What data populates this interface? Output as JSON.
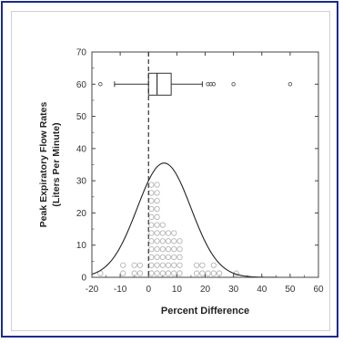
{
  "chart_data": {
    "type": "histogram-boxplot",
    "title": "",
    "xlabel": "Percent Difference",
    "ylabel_line1": "Peak Expiratory Flow Rates",
    "ylabel_line2": "(Liters Per Minute)",
    "xlim": [
      -20,
      60
    ],
    "ylim": [
      0,
      70
    ],
    "x_ticks": [
      -20,
      -10,
      0,
      10,
      20,
      30,
      40,
      50,
      60
    ],
    "y_ticks": [
      0,
      10,
      20,
      30,
      40,
      50,
      60,
      70
    ],
    "reference_line_x": 0,
    "histogram": {
      "bin_width": 2,
      "bins": [
        {
          "x": -18,
          "count": 1
        },
        {
          "x": -10,
          "count": 2
        },
        {
          "x": -6,
          "count": 2
        },
        {
          "x": -4,
          "count": 2
        },
        {
          "x": 0,
          "count": 12
        },
        {
          "x": 2,
          "count": 12
        },
        {
          "x": 4,
          "count": 7
        },
        {
          "x": 6,
          "count": 6
        },
        {
          "x": 8,
          "count": 6
        },
        {
          "x": 10,
          "count": 5
        },
        {
          "x": 16,
          "count": 2
        },
        {
          "x": 18,
          "count": 2
        },
        {
          "x": 20,
          "count": 1
        },
        {
          "x": 22,
          "count": 2
        },
        {
          "x": 24,
          "count": 1
        },
        {
          "x": 30,
          "count": 1
        }
      ]
    },
    "normal_curve": {
      "mean": 5.5,
      "sd": 9.5,
      "peak": 35.5
    },
    "boxplot": {
      "y": 60,
      "whisker_low": -12,
      "q1": 0,
      "median": 3,
      "q3": 8,
      "whisker_high": 19,
      "outliers": [
        -17,
        21,
        22,
        23,
        30,
        50
      ]
    }
  }
}
